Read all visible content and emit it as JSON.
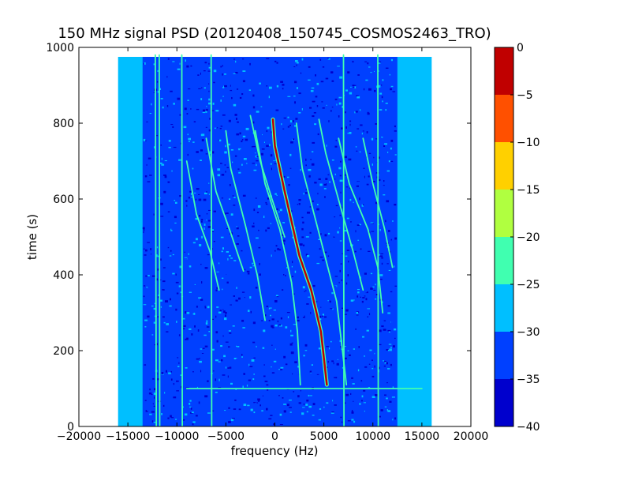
{
  "chart_data": {
    "type": "heatmap",
    "title": "150 MHz signal PSD (20120408_150745_COSMOS2463_TRO)",
    "xlabel": "frequency (Hz)",
    "ylabel": "time (s)",
    "xlim": [
      -20000,
      20000
    ],
    "ylim": [
      0,
      1000
    ],
    "xticks": [
      -20000,
      -15000,
      -10000,
      -5000,
      0,
      5000,
      10000,
      15000,
      20000
    ],
    "xtick_labels": [
      "−20000",
      "−15000",
      "−10000",
      "−5000",
      "0",
      "5000",
      "10000",
      "15000",
      "20000"
    ],
    "yticks": [
      0,
      200,
      400,
      600,
      800,
      1000
    ],
    "ytick_labels": [
      "0",
      "200",
      "400",
      "600",
      "800",
      "1000"
    ],
    "data_extent": {
      "x": [
        -16000,
        16000
      ],
      "y": [
        0,
        975
      ]
    },
    "background_level": -30,
    "colorbar": {
      "range": [
        -40,
        0
      ],
      "ticks": [
        0,
        -5,
        -10,
        -15,
        -20,
        -25,
        -30,
        -35,
        -40
      ],
      "tick_labels": [
        "0",
        "−5",
        "−10",
        "−15",
        "−20",
        "−25",
        "−30",
        "−35",
        "−40"
      ],
      "levels": [
        {
          "from": -40,
          "to": -35,
          "color": "#0000cd"
        },
        {
          "from": -35,
          "to": -30,
          "color": "#0040ff"
        },
        {
          "from": -30,
          "to": -25,
          "color": "#00bfff"
        },
        {
          "from": -25,
          "to": -20,
          "color": "#40ffb0"
        },
        {
          "from": -20,
          "to": -15,
          "color": "#b0ff40"
        },
        {
          "from": -15,
          "to": -10,
          "color": "#ffd000"
        },
        {
          "from": -10,
          "to": -5,
          "color": "#ff5000"
        },
        {
          "from": -5,
          "to": 0,
          "color": "#c00000"
        }
      ]
    },
    "series": [
      {
        "level": -5,
        "points": [
          [
            -200,
            810
          ],
          [
            0,
            740
          ],
          [
            1000,
            620
          ],
          [
            2500,
            450
          ],
          [
            3700,
            360
          ],
          [
            4700,
            250
          ],
          [
            5300,
            110
          ]
        ]
      },
      {
        "level": -22,
        "points": [
          [
            -5000,
            780
          ],
          [
            -4500,
            680
          ],
          [
            -3000,
            530
          ],
          [
            -1800,
            400
          ],
          [
            -1000,
            280
          ]
        ]
      },
      {
        "level": -22,
        "points": [
          [
            -2000,
            780
          ],
          [
            -1000,
            640
          ],
          [
            500,
            520
          ],
          [
            1700,
            380
          ],
          [
            2300,
            250
          ],
          [
            2600,
            110
          ]
        ]
      },
      {
        "level": -22,
        "points": [
          [
            2200,
            800
          ],
          [
            2800,
            680
          ],
          [
            4000,
            560
          ],
          [
            5300,
            430
          ],
          [
            6300,
            330
          ],
          [
            6900,
            200
          ],
          [
            7300,
            110
          ]
        ]
      },
      {
        "level": -22,
        "points": [
          [
            4500,
            810
          ],
          [
            5200,
            720
          ],
          [
            6800,
            570
          ],
          [
            8000,
            460
          ],
          [
            9000,
            360
          ]
        ]
      },
      {
        "level": -25,
        "points": [
          [
            -9000,
            700
          ],
          [
            -8000,
            560
          ],
          [
            -6600,
            460
          ],
          [
            -5700,
            360
          ]
        ]
      },
      {
        "level": -25,
        "points": [
          [
            -7000,
            760
          ],
          [
            -6000,
            620
          ],
          [
            -4500,
            510
          ],
          [
            -3200,
            410
          ]
        ]
      },
      {
        "level": -25,
        "points": [
          [
            6500,
            760
          ],
          [
            7600,
            640
          ],
          [
            9500,
            520
          ],
          [
            10500,
            420
          ],
          [
            11000,
            300
          ]
        ]
      },
      {
        "level": -25,
        "points": [
          [
            9000,
            760
          ],
          [
            10000,
            640
          ],
          [
            11200,
            520
          ],
          [
            12000,
            420
          ]
        ]
      },
      {
        "level": -25,
        "points": [
          [
            -2500,
            820
          ],
          [
            -1500,
            700
          ],
          [
            -300,
            600
          ],
          [
            1000,
            500
          ]
        ]
      },
      {
        "level": -25,
        "points": [
          [
            -12200,
            980
          ],
          [
            -12100,
            0
          ]
        ]
      },
      {
        "level": -25,
        "points": [
          [
            -11800,
            980
          ],
          [
            -11750,
            0
          ]
        ]
      },
      {
        "level": -25,
        "points": [
          [
            -9500,
            980
          ],
          [
            -9450,
            0
          ]
        ]
      },
      {
        "level": -25,
        "points": [
          [
            -6500,
            980
          ],
          [
            -6450,
            0
          ]
        ]
      },
      {
        "level": -25,
        "points": [
          [
            7000,
            980
          ],
          [
            7050,
            0
          ]
        ]
      },
      {
        "level": -25,
        "points": [
          [
            10500,
            980
          ],
          [
            10550,
            0
          ]
        ]
      },
      {
        "level": -25,
        "points": [
          [
            -9000,
            100
          ],
          [
            15000,
            100
          ]
        ]
      }
    ]
  }
}
